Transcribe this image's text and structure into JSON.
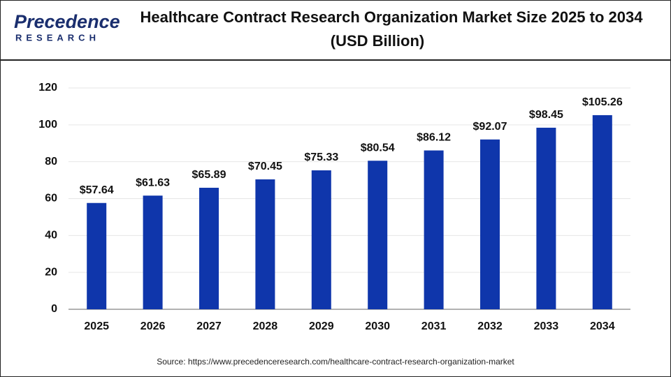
{
  "logo": {
    "name": "Precedence",
    "tagline": "RESEARCH"
  },
  "chart_data": {
    "type": "bar",
    "title": "Healthcare Contract Research Organization Market Size 2025 to 2034",
    "subtitle": "(USD Billion)",
    "categories": [
      "2025",
      "2026",
      "2027",
      "2028",
      "2029",
      "2030",
      "2031",
      "2032",
      "2033",
      "2034"
    ],
    "values": [
      57.64,
      61.63,
      65.89,
      70.45,
      75.33,
      80.54,
      86.12,
      92.07,
      98.45,
      105.26
    ],
    "value_labels": [
      "$57.64",
      "$61.63",
      "$65.89",
      "$70.45",
      "$75.33",
      "$80.54",
      "$86.12",
      "$92.07",
      "$98.45",
      "$105.26"
    ],
    "color": "#0f36ab",
    "ylim": [
      0,
      120
    ],
    "yticks": [
      0,
      20,
      40,
      60,
      80,
      100,
      120
    ],
    "grid": true,
    "source": "Source: https://www.precedenceresearch.com/healthcare-contract-research-organization-market"
  }
}
